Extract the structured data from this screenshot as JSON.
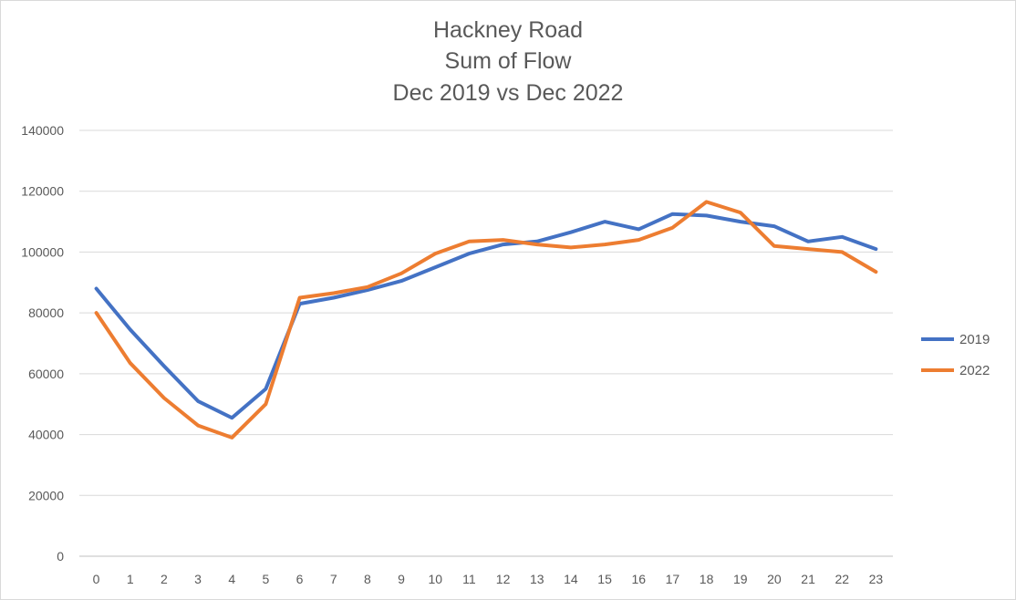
{
  "chart_data": {
    "type": "line",
    "title_lines": [
      "Hackney Road",
      "Sum of Flow",
      "Dec 2019 vs Dec 2022"
    ],
    "xlabel": "",
    "ylabel": "",
    "categories": [
      "0",
      "1",
      "2",
      "3",
      "4",
      "5",
      "6",
      "7",
      "8",
      "9",
      "10",
      "11",
      "12",
      "13",
      "14",
      "15",
      "16",
      "17",
      "18",
      "19",
      "20",
      "21",
      "22",
      "23"
    ],
    "y_ticks": [
      "0",
      "20000",
      "40000",
      "60000",
      "80000",
      "100000",
      "120000",
      "140000"
    ],
    "ylim": [
      0,
      140000
    ],
    "grid": "horizontal",
    "legend_position": "right",
    "series": [
      {
        "name": "2019",
        "color": "#4472c4",
        "values": [
          88000,
          74500,
          62500,
          51000,
          45500,
          55000,
          83000,
          85000,
          87500,
          90500,
          95000,
          99500,
          102500,
          103500,
          106500,
          110000,
          107500,
          112500,
          112000,
          110000,
          108500,
          103500,
          105000,
          101000
        ]
      },
      {
        "name": "2022",
        "color": "#ed7d31",
        "values": [
          80000,
          63500,
          52000,
          43000,
          39000,
          50000,
          85000,
          86500,
          88500,
          93000,
          99500,
          103500,
          104000,
          102500,
          101500,
          102500,
          104000,
          108000,
          116500,
          113000,
          102000,
          101000,
          100000,
          93500
        ]
      }
    ]
  }
}
